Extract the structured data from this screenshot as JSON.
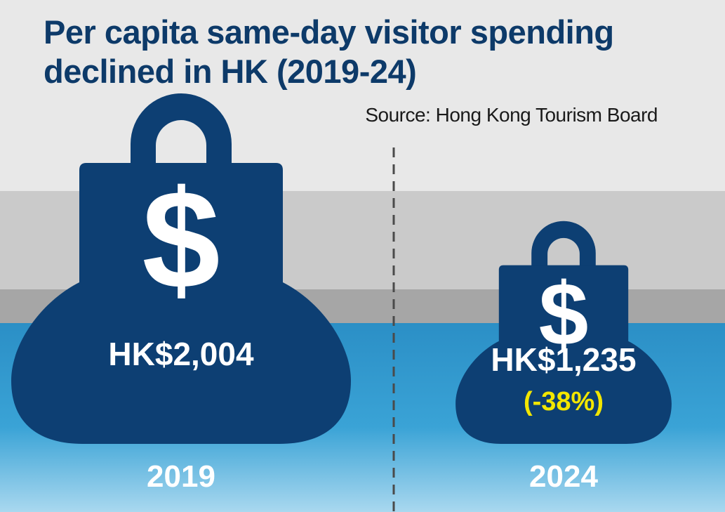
{
  "title": "Per capita same-day visitor spending declined in HK (2019-24)",
  "source": "Source: Hong Kong Tourism Board",
  "colors": {
    "weight": "#0d3f73",
    "label": "#ffffff",
    "change": "#f2e600",
    "title": "#0d3a69",
    "water": "#2e97cb",
    "bands": [
      "#e8e8e8",
      "#cacaca",
      "#a6a6a6"
    ]
  },
  "icons": [
    "weight-icon",
    "dollar-sign-icon"
  ],
  "chart_data": {
    "type": "bar",
    "title": "Per capita same-day visitor spending declined in HK (2019-24)",
    "categories": [
      "2019",
      "2024"
    ],
    "values": [
      2004,
      1235
    ],
    "value_labels": [
      "HK$2,004",
      "HK$1,235"
    ],
    "change_labels": [
      "",
      "(-38%)"
    ],
    "xlabel": "",
    "ylabel": "",
    "grid": false
  }
}
